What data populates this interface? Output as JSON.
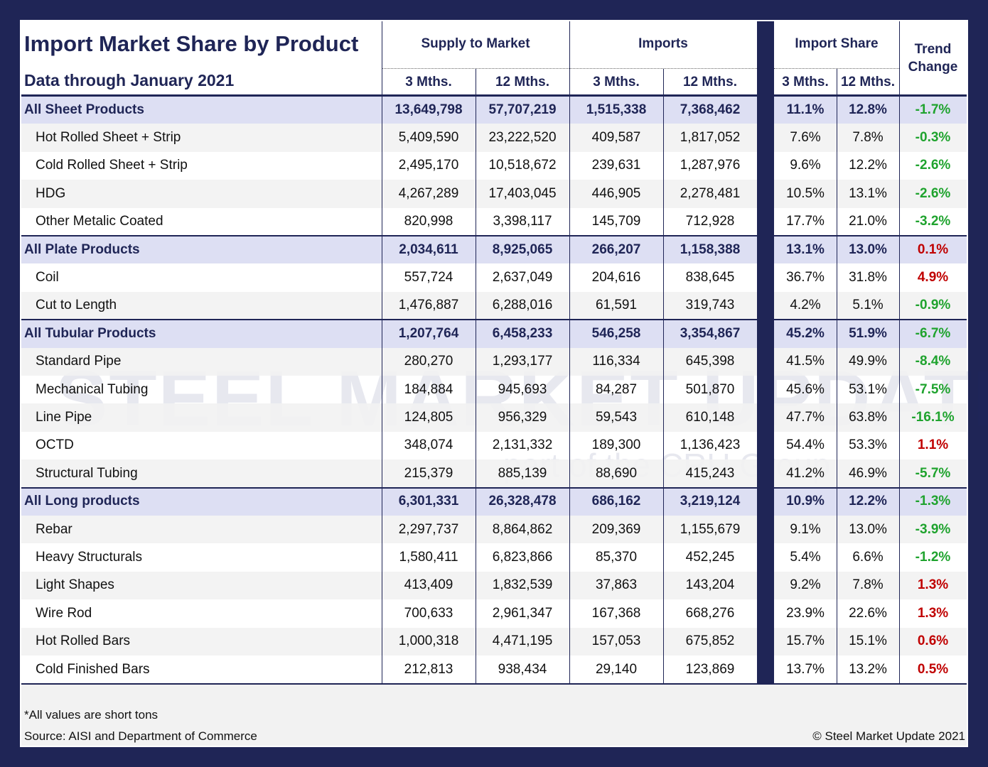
{
  "header": {
    "title": "Import Market Share by Product",
    "subtitle": "Data through January 2021"
  },
  "columns": {
    "groups": [
      "Supply to Market",
      "Imports",
      "Import Share",
      "Trend Change"
    ],
    "sub": [
      "3 Mths.",
      "12 Mths.",
      "3 Mths.",
      "12 Mths.",
      "3 Mths.",
      "12 Mths."
    ]
  },
  "table": {
    "rows": [
      {
        "group": true,
        "cells": [
          "All Sheet Products",
          "13,649,798",
          "57,707,219",
          "1,515,338",
          "7,368,462",
          "11.1%",
          "12.8%",
          "-1.7%"
        ]
      },
      {
        "group": false,
        "cells": [
          "Hot Rolled Sheet + Strip",
          "5,409,590",
          "23,222,520",
          "409,587",
          "1,817,052",
          "7.6%",
          "7.8%",
          "-0.3%"
        ]
      },
      {
        "group": false,
        "cells": [
          "Cold Rolled Sheet + Strip",
          "2,495,170",
          "10,518,672",
          "239,631",
          "1,287,976",
          "9.6%",
          "12.2%",
          "-2.6%"
        ]
      },
      {
        "group": false,
        "cells": [
          "HDG",
          "4,267,289",
          "17,403,045",
          "446,905",
          "2,278,481",
          "10.5%",
          "13.1%",
          "-2.6%"
        ]
      },
      {
        "group": false,
        "cells": [
          "Other Metalic Coated",
          "820,998",
          "3,398,117",
          "145,709",
          "712,928",
          "17.7%",
          "21.0%",
          "-3.2%"
        ]
      },
      {
        "group": true,
        "cells": [
          "All Plate Products",
          "2,034,611",
          "8,925,065",
          "266,207",
          "1,158,388",
          "13.1%",
          "13.0%",
          "0.1%"
        ]
      },
      {
        "group": false,
        "cells": [
          "Coil",
          "557,724",
          "2,637,049",
          "204,616",
          "838,645",
          "36.7%",
          "31.8%",
          "4.9%"
        ]
      },
      {
        "group": false,
        "cells": [
          "Cut to Length",
          "1,476,887",
          "6,288,016",
          "61,591",
          "319,743",
          "4.2%",
          "5.1%",
          "-0.9%"
        ]
      },
      {
        "group": true,
        "cells": [
          "All Tubular Products",
          "1,207,764",
          "6,458,233",
          "546,258",
          "3,354,867",
          "45.2%",
          "51.9%",
          "-6.7%"
        ]
      },
      {
        "group": false,
        "cells": [
          "Standard Pipe",
          "280,270",
          "1,293,177",
          "116,334",
          "645,398",
          "41.5%",
          "49.9%",
          "-8.4%"
        ]
      },
      {
        "group": false,
        "cells": [
          "Mechanical Tubing",
          "184,884",
          "945,693",
          "84,287",
          "501,870",
          "45.6%",
          "53.1%",
          "-7.5%"
        ]
      },
      {
        "group": false,
        "cells": [
          "Line Pipe",
          "124,805",
          "956,329",
          "59,543",
          "610,148",
          "47.7%",
          "63.8%",
          "-16.1%"
        ]
      },
      {
        "group": false,
        "cells": [
          "OCTD",
          "348,074",
          "2,131,332",
          "189,300",
          "1,136,423",
          "54.4%",
          "53.3%",
          "1.1%"
        ]
      },
      {
        "group": false,
        "cells": [
          "Structural Tubing",
          "215,379",
          "885,139",
          "88,690",
          "415,243",
          "41.2%",
          "46.9%",
          "-5.7%"
        ]
      },
      {
        "group": true,
        "cells": [
          "All Long products",
          "6,301,331",
          "26,328,478",
          "686,162",
          "3,219,124",
          "10.9%",
          "12.2%",
          "-1.3%"
        ]
      },
      {
        "group": false,
        "cells": [
          "Rebar",
          "2,297,737",
          "8,864,862",
          "209,369",
          "1,155,679",
          "9.1%",
          "13.0%",
          "-3.9%"
        ]
      },
      {
        "group": false,
        "cells": [
          "Heavy Structurals",
          "1,580,411",
          "6,823,866",
          "85,370",
          "452,245",
          "5.4%",
          "6.6%",
          "-1.2%"
        ]
      },
      {
        "group": false,
        "cells": [
          "Light Shapes",
          "413,409",
          "1,832,539",
          "37,863",
          "143,204",
          "9.2%",
          "7.8%",
          "1.3%"
        ]
      },
      {
        "group": false,
        "cells": [
          "Wire Rod",
          "700,633",
          "2,961,347",
          "167,368",
          "668,276",
          "23.9%",
          "22.6%",
          "1.3%"
        ]
      },
      {
        "group": false,
        "cells": [
          "Hot Rolled Bars",
          "1,000,318",
          "4,471,195",
          "157,053",
          "675,852",
          "15.7%",
          "15.1%",
          "0.6%"
        ]
      },
      {
        "group": false,
        "cells": [
          "Cold Finished Bars",
          "212,813",
          "938,434",
          "29,140",
          "123,869",
          "13.7%",
          "13.2%",
          "0.5%"
        ]
      }
    ]
  },
  "watermark": {
    "main": "STEEL MARKET UPDATE",
    "sub": "part of the CRU Group"
  },
  "footer": {
    "note": "*All values are short tons",
    "source": "Source: AISI and Department of Commerce",
    "copyright": "© Steel Market Update 2021"
  }
}
